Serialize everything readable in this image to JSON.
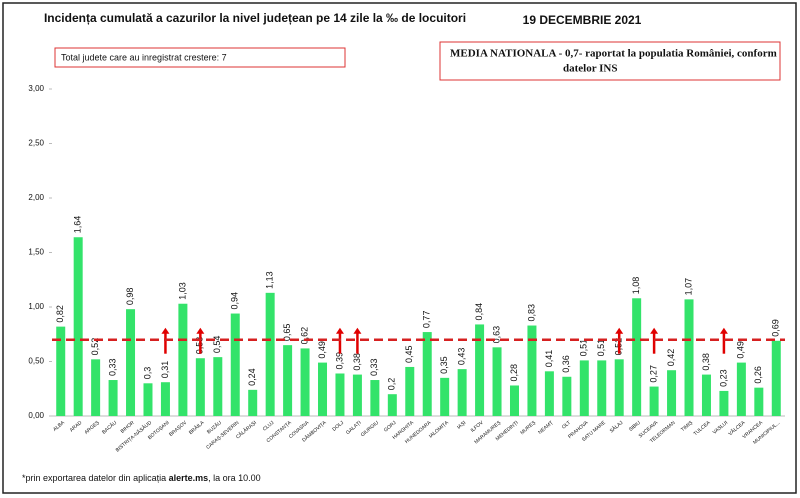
{
  "chart_data": {
    "type": "bar",
    "title": "Incidența cumulată a cazurilor la nivel județean pe 14 zile la ‰ de locuitori",
    "date": "19 DECEMBRIE 2021",
    "note_box": "Total judete care au inregistrat crestere: 7",
    "national_box": [
      "MEDIA NATIONALA - 0,7-  raportat la populatia României, conform",
      "datelor INS"
    ],
    "footnote": [
      "*prin exportarea datelor din aplicația ",
      "alerte.ms",
      ", la ora 10.00"
    ],
    "categories": [
      "ALBA",
      "ARAD",
      "ARGEȘ",
      "BACĂU",
      "BIHOR",
      "BISTRIȚA-NĂSĂUD",
      "BOTOȘANI",
      "BRAȘOV",
      "BRĂILA",
      "BUZĂU",
      "CARAȘ-SEVERIN",
      "CĂLĂRAȘI",
      "CLUJ",
      "CONSTANȚA",
      "COVASNA",
      "DÂMBOVIȚA",
      "DOLJ",
      "GALAȚI",
      "GIURGIU",
      "GORJ",
      "HARGHITA",
      "HUNEDOARA",
      "IALOMIȚA",
      "IAȘI",
      "ILFOV",
      "MARAMUREȘ",
      "MEHEDINȚI",
      "MUREȘ",
      "NEAMȚ",
      "OLT",
      "PRAHOVA",
      "SATU MARE",
      "SĂLAJ",
      "SIBIU",
      "SUCEAVA",
      "TELEORMAN",
      "TIMIȘ",
      "TULCEA",
      "VASLUI",
      "VÂLCEA",
      "VRANCEA",
      "MUNICIPIUL..."
    ],
    "values": [
      0.82,
      1.64,
      0.52,
      0.33,
      0.98,
      0.3,
      0.31,
      1.03,
      0.53,
      0.54,
      0.94,
      0.24,
      1.13,
      0.65,
      0.62,
      0.49,
      0.39,
      0.38,
      0.33,
      0.2,
      0.45,
      0.77,
      0.35,
      0.43,
      0.84,
      0.63,
      0.28,
      0.83,
      0.41,
      0.36,
      0.51,
      0.51,
      0.52,
      1.08,
      0.27,
      0.42,
      1.07,
      0.38,
      0.23,
      0.49,
      0.26,
      0.69
    ],
    "value_labels": [
      "0,82",
      "1,64",
      "0,52",
      "0,33",
      "0,98",
      "0,3",
      "0,31",
      "1,03",
      "0,53",
      "0,54",
      "0,94",
      "0,24",
      "1,13",
      "0,65",
      "0,62",
      "0,49",
      "0,39",
      "0,38",
      "0,33",
      "0,2",
      "0,45",
      "0,77",
      "0,35",
      "0,43",
      "0,84",
      "0,63",
      "0,28",
      "0,83",
      "0,41",
      "0,36",
      "0,51",
      "0,51",
      "0,52",
      "1,08",
      "0,27",
      "0,42",
      "1,07",
      "0,38",
      "0,23",
      "0,49",
      "0,26",
      "0,69"
    ],
    "increase": [
      false,
      false,
      false,
      false,
      false,
      false,
      true,
      false,
      true,
      false,
      false,
      false,
      false,
      false,
      false,
      false,
      true,
      true,
      false,
      false,
      false,
      false,
      false,
      false,
      false,
      false,
      false,
      false,
      false,
      false,
      false,
      false,
      true,
      false,
      true,
      false,
      false,
      false,
      true,
      false,
      false,
      false
    ],
    "color": "#33e36a",
    "arrow_color": "#e00000",
    "reference_line": 0.7,
    "reference_color": "#d62020",
    "ylim": [
      0,
      3
    ],
    "yticks": [
      {
        "value": 0,
        "label": "0,00"
      },
      {
        "value": 0.5,
        "label": "0,50"
      },
      {
        "value": 1,
        "label": "1,00"
      },
      {
        "value": 1.5,
        "label": "1,50"
      },
      {
        "value": 2,
        "label": "2,00"
      },
      {
        "value": 2.5,
        "label": "2,50"
      },
      {
        "value": 3,
        "label": "3,00"
      }
    ]
  }
}
